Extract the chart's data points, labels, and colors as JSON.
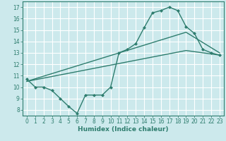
{
  "bg_color": "#cce9ec",
  "grid_color": "#ffffff",
  "line_color": "#2e7d6e",
  "xlabel": "Humidex (Indice chaleur)",
  "xlim": [
    -0.5,
    23.5
  ],
  "ylim": [
    7.5,
    17.5
  ],
  "xticks": [
    0,
    1,
    2,
    3,
    4,
    5,
    6,
    7,
    8,
    9,
    10,
    11,
    12,
    13,
    14,
    15,
    16,
    17,
    18,
    19,
    20,
    21,
    22,
    23
  ],
  "yticks": [
    8,
    9,
    10,
    11,
    12,
    13,
    14,
    15,
    16,
    17
  ],
  "line1_x": [
    0,
    1,
    2,
    3,
    4,
    5,
    6,
    7,
    8,
    9,
    10,
    11,
    12,
    13,
    14,
    15,
    16,
    17,
    18,
    19,
    20,
    21,
    22,
    23
  ],
  "line1_y": [
    10.7,
    10.0,
    10.0,
    9.7,
    9.0,
    8.3,
    7.7,
    9.3,
    9.3,
    9.3,
    10.0,
    13.0,
    13.3,
    13.8,
    15.2,
    16.5,
    16.7,
    17.0,
    16.7,
    15.3,
    14.7,
    13.3,
    13.0,
    12.8
  ],
  "line2_x": [
    0,
    19,
    23
  ],
  "line2_y": [
    10.5,
    14.8,
    13.0
  ],
  "line3_x": [
    0,
    19,
    23
  ],
  "line3_y": [
    10.5,
    13.2,
    12.8
  ],
  "marker_size": 2.5,
  "linewidth": 1.0,
  "xlabel_fontsize": 6.5,
  "tick_fontsize": 5.5
}
